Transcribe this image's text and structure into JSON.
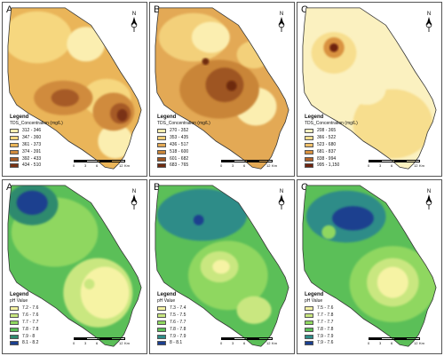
{
  "panels": [
    {
      "label": "A",
      "legend_title": "Legend",
      "legend_subtitle": "TDS_Concentration (mg/L)",
      "classes": [
        {
          "range": "312 - 346",
          "color": "#fbeeb0"
        },
        {
          "range": "347 - 360",
          "color": "#f6d77f"
        },
        {
          "range": "361 - 373",
          "color": "#eab559"
        },
        {
          "range": "374 - 391",
          "color": "#d08b3d"
        },
        {
          "range": "392 - 433",
          "color": "#a65a25"
        },
        {
          "range": "434 - 510",
          "color": "#7a3213"
        }
      ],
      "map_icon": "north-arrow-icon",
      "scale": {
        "ticks": [
          "0",
          "3",
          "6",
          "12"
        ],
        "unit": "Km"
      }
    },
    {
      "label": "B",
      "legend_title": "Legend",
      "legend_subtitle": "TDS_Concentration (mg/L)",
      "classes": [
        {
          "range": "270 - 352",
          "color": "#fbeeb0"
        },
        {
          "range": "353 - 435",
          "color": "#f3d07a"
        },
        {
          "range": "436 - 517",
          "color": "#e3a955"
        },
        {
          "range": "518 - 600",
          "color": "#c98538"
        },
        {
          "range": "601 - 682",
          "color": "#9e5522"
        },
        {
          "range": "683 - 765",
          "color": "#6e2b10"
        }
      ],
      "map_icon": "north-arrow-icon",
      "scale": {
        "ticks": [
          "0",
          "3",
          "6",
          "12"
        ],
        "unit": "Km"
      }
    },
    {
      "label": "C",
      "legend_title": "Legend",
      "legend_subtitle": "TDS_Concentration (mg/L)",
      "classes": [
        {
          "range": "208 - 365",
          "color": "#fbf1c0"
        },
        {
          "range": "366 - 522",
          "color": "#f7de8e"
        },
        {
          "range": "523 - 680",
          "color": "#f0c06a"
        },
        {
          "range": "681 - 837",
          "color": "#d9923f"
        },
        {
          "range": "838 - 994",
          "color": "#b1622a"
        },
        {
          "range": "995 - 1,150",
          "color": "#6e2410"
        }
      ],
      "map_icon": "north-arrow-icon",
      "scale": {
        "ticks": [
          "0",
          "3",
          "6",
          "12"
        ],
        "unit": "Km"
      }
    },
    {
      "label": "A",
      "legend_title": "Legend",
      "legend_subtitle": "pH Value",
      "classes": [
        {
          "range": "7.2 - 7.6",
          "color": "#f6f3a4"
        },
        {
          "range": "7.6 - 7.6",
          "color": "#c9e780"
        },
        {
          "range": "7.7 - 7.7",
          "color": "#8fd760"
        },
        {
          "range": "7.8 - 7.8",
          "color": "#5bbf58"
        },
        {
          "range": "7.9 - 8",
          "color": "#2f8a6e"
        },
        {
          "range": "8.1 - 8.2",
          "color": "#1b3f8f"
        }
      ],
      "map_icon": "north-arrow-icon",
      "scale": {
        "ticks": [
          "0",
          "3",
          "6",
          "12"
        ],
        "unit": "Km"
      }
    },
    {
      "label": "B",
      "legend_title": "Legend",
      "legend_subtitle": "pH Value",
      "classes": [
        {
          "range": "7.3 - 7.4",
          "color": "#f6f3a4"
        },
        {
          "range": "7.5 - 7.5",
          "color": "#c9e780"
        },
        {
          "range": "7.6 - 7.7",
          "color": "#8fd760"
        },
        {
          "range": "7.8 - 7.8",
          "color": "#5bbf58"
        },
        {
          "range": "7.9 - 7.9",
          "color": "#2e8c88"
        },
        {
          "range": "8 - 8.1",
          "color": "#1b3f8f"
        }
      ],
      "map_icon": "north-arrow-icon",
      "scale": {
        "ticks": [
          "0",
          "3",
          "6",
          "12"
        ],
        "unit": "Km"
      }
    },
    {
      "label": "C",
      "legend_title": "Legend",
      "legend_subtitle": "pH Value",
      "classes": [
        {
          "range": "7.5 - 7.6",
          "color": "#f6f3a4"
        },
        {
          "range": "7.7 - 7.8",
          "color": "#c9e780"
        },
        {
          "range": "7.7 - 7.7",
          "color": "#8fd760"
        },
        {
          "range": "7.8 - 7.8",
          "color": "#5bbf58"
        },
        {
          "range": "7.9 - 7.9",
          "color": "#2e8c88"
        },
        {
          "range": "7.9 - 7.6",
          "color": "#1b3f8f"
        }
      ],
      "map_icon": "north-arrow-icon",
      "scale": {
        "ticks": [
          "0",
          "3",
          "6",
          "12"
        ],
        "unit": "Km"
      }
    }
  ]
}
